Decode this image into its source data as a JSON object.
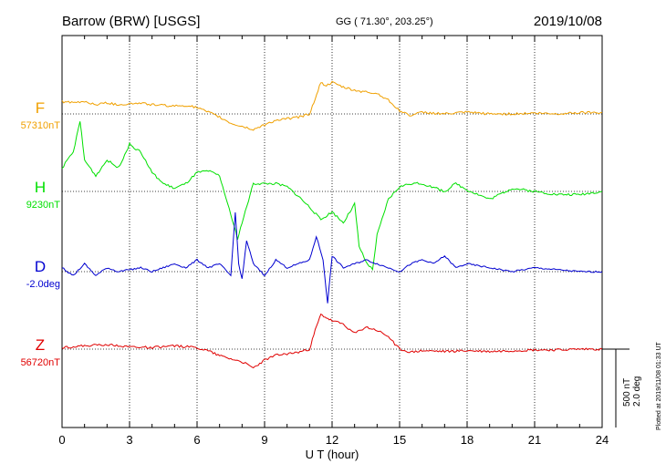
{
  "header": {
    "station": "Barrow (BRW)  [USGS]",
    "coords": "GG ( 71.30°, 203.25°)",
    "date": "2019/10/08"
  },
  "xaxis": {
    "label": "U T (hour)",
    "ticks": [
      "0",
      "3",
      "6",
      "9",
      "12",
      "15",
      "18",
      "21",
      "24"
    ]
  },
  "scale_label": "500 nT\n2.0 deg",
  "scale_line1": "500 nT",
  "scale_line2": "2.0 deg",
  "plotted_note": "Plotted at 2019/11/08 01:33 UT",
  "colors": {
    "F": "#f0a000",
    "H": "#00e000",
    "D": "#0000d0",
    "Z": "#e00000",
    "grid": "#000000"
  },
  "chart_data": {
    "type": "line",
    "title": "Barrow (BRW)  [USGS]",
    "xlabel": "U T (hour)",
    "ylabel": "",
    "xlim": [
      0,
      24
    ],
    "scale": {
      "nT": 500,
      "deg": 2.0
    },
    "grid": true,
    "series": [
      {
        "name": "F",
        "baseline_label": "57310nT",
        "unit": "nT",
        "x": [
          0,
          0.5,
          1,
          1.5,
          2,
          2.5,
          3,
          3.5,
          4,
          4.5,
          5,
          5.5,
          6,
          6.5,
          7,
          7.5,
          8,
          8.5,
          9,
          9.5,
          10,
          10.5,
          11,
          11.25,
          11.5,
          11.75,
          12,
          12.5,
          13,
          13.5,
          14,
          14.5,
          15,
          15.5,
          16,
          17,
          18,
          19,
          20,
          21,
          22,
          23,
          24
        ],
        "values": [
          80,
          70,
          80,
          60,
          70,
          60,
          65,
          70,
          60,
          55,
          50,
          55,
          40,
          10,
          -20,
          -60,
          -80,
          -100,
          -70,
          -40,
          -30,
          -20,
          0,
          100,
          200,
          180,
          200,
          170,
          150,
          140,
          130,
          90,
          20,
          -10,
          10,
          0,
          10,
          0,
          0,
          5,
          0,
          10,
          10
        ]
      },
      {
        "name": "H",
        "baseline_label": "9230nT",
        "unit": "nT",
        "x": [
          0,
          0.5,
          0.8,
          1,
          1.5,
          2,
          2.5,
          3,
          3.5,
          4,
          4.5,
          5,
          5.5,
          6,
          6.5,
          7,
          7.5,
          7.8,
          8,
          8.5,
          9,
          9.5,
          10,
          10.5,
          11,
          11.5,
          12,
          12.5,
          13,
          13.2,
          13.5,
          13.8,
          14,
          14.5,
          15,
          15.5,
          16,
          17,
          17.5,
          18,
          19,
          20,
          21,
          22,
          23,
          24
        ],
        "values": [
          150,
          250,
          450,
          200,
          100,
          200,
          150,
          300,
          250,
          120,
          50,
          20,
          50,
          120,
          130,
          100,
          -150,
          -300,
          -200,
          50,
          50,
          50,
          30,
          -30,
          -100,
          -180,
          -130,
          -200,
          -80,
          -350,
          -450,
          -500,
          -280,
          -50,
          30,
          50,
          50,
          0,
          50,
          10,
          -50,
          20,
          0,
          -20,
          -20,
          0
        ]
      },
      {
        "name": "D",
        "baseline_label": "-2.0deg",
        "unit": "deg",
        "x": [
          0,
          0.5,
          1,
          1.5,
          2,
          2.5,
          3,
          3.5,
          4,
          4.5,
          5,
          5.5,
          6,
          6.5,
          7,
          7.5,
          7.7,
          7.85,
          8,
          8.2,
          8.5,
          9,
          9.5,
          10,
          10.5,
          11,
          11.3,
          11.6,
          11.8,
          12,
          12.5,
          13,
          13.5,
          14,
          14.5,
          15,
          15.5,
          16,
          16.5,
          17,
          17.5,
          18,
          19,
          20,
          21,
          22,
          23,
          24
        ],
        "values": [
          0.1,
          -0.1,
          0.2,
          -0.1,
          0.1,
          0.0,
          0.05,
          0.1,
          0.0,
          0.1,
          0.2,
          0.1,
          0.3,
          0.1,
          0.2,
          -0.1,
          1.5,
          0.2,
          -0.2,
          0.8,
          0.2,
          -0.1,
          0.3,
          0.1,
          0.2,
          0.3,
          0.9,
          0.3,
          -0.8,
          0.4,
          0.1,
          0.2,
          0.3,
          0.2,
          0.1,
          0.0,
          0.2,
          0.3,
          0.2,
          0.4,
          0.1,
          0.2,
          0.1,
          0.0,
          0.1,
          0.05,
          0.0,
          0.0
        ]
      },
      {
        "name": "Z",
        "baseline_label": "56720nT",
        "unit": "nT",
        "x": [
          0,
          1,
          2,
          3,
          4,
          5,
          6,
          6.5,
          7,
          7.5,
          8,
          8.5,
          9,
          9.5,
          10,
          10.5,
          11,
          11.25,
          11.5,
          11.75,
          12,
          12.5,
          13,
          13.5,
          14,
          14.5,
          15,
          15.5,
          16,
          17,
          18,
          19,
          20,
          21,
          22,
          23,
          24
        ],
        "values": [
          10,
          20,
          30,
          15,
          10,
          20,
          10,
          -10,
          -40,
          -60,
          -80,
          -120,
          -70,
          -40,
          -30,
          -20,
          0,
          120,
          220,
          200,
          180,
          160,
          100,
          140,
          120,
          80,
          0,
          -20,
          -10,
          -15,
          -10,
          -15,
          -10,
          -5,
          -5,
          0,
          0
        ]
      }
    ]
  }
}
